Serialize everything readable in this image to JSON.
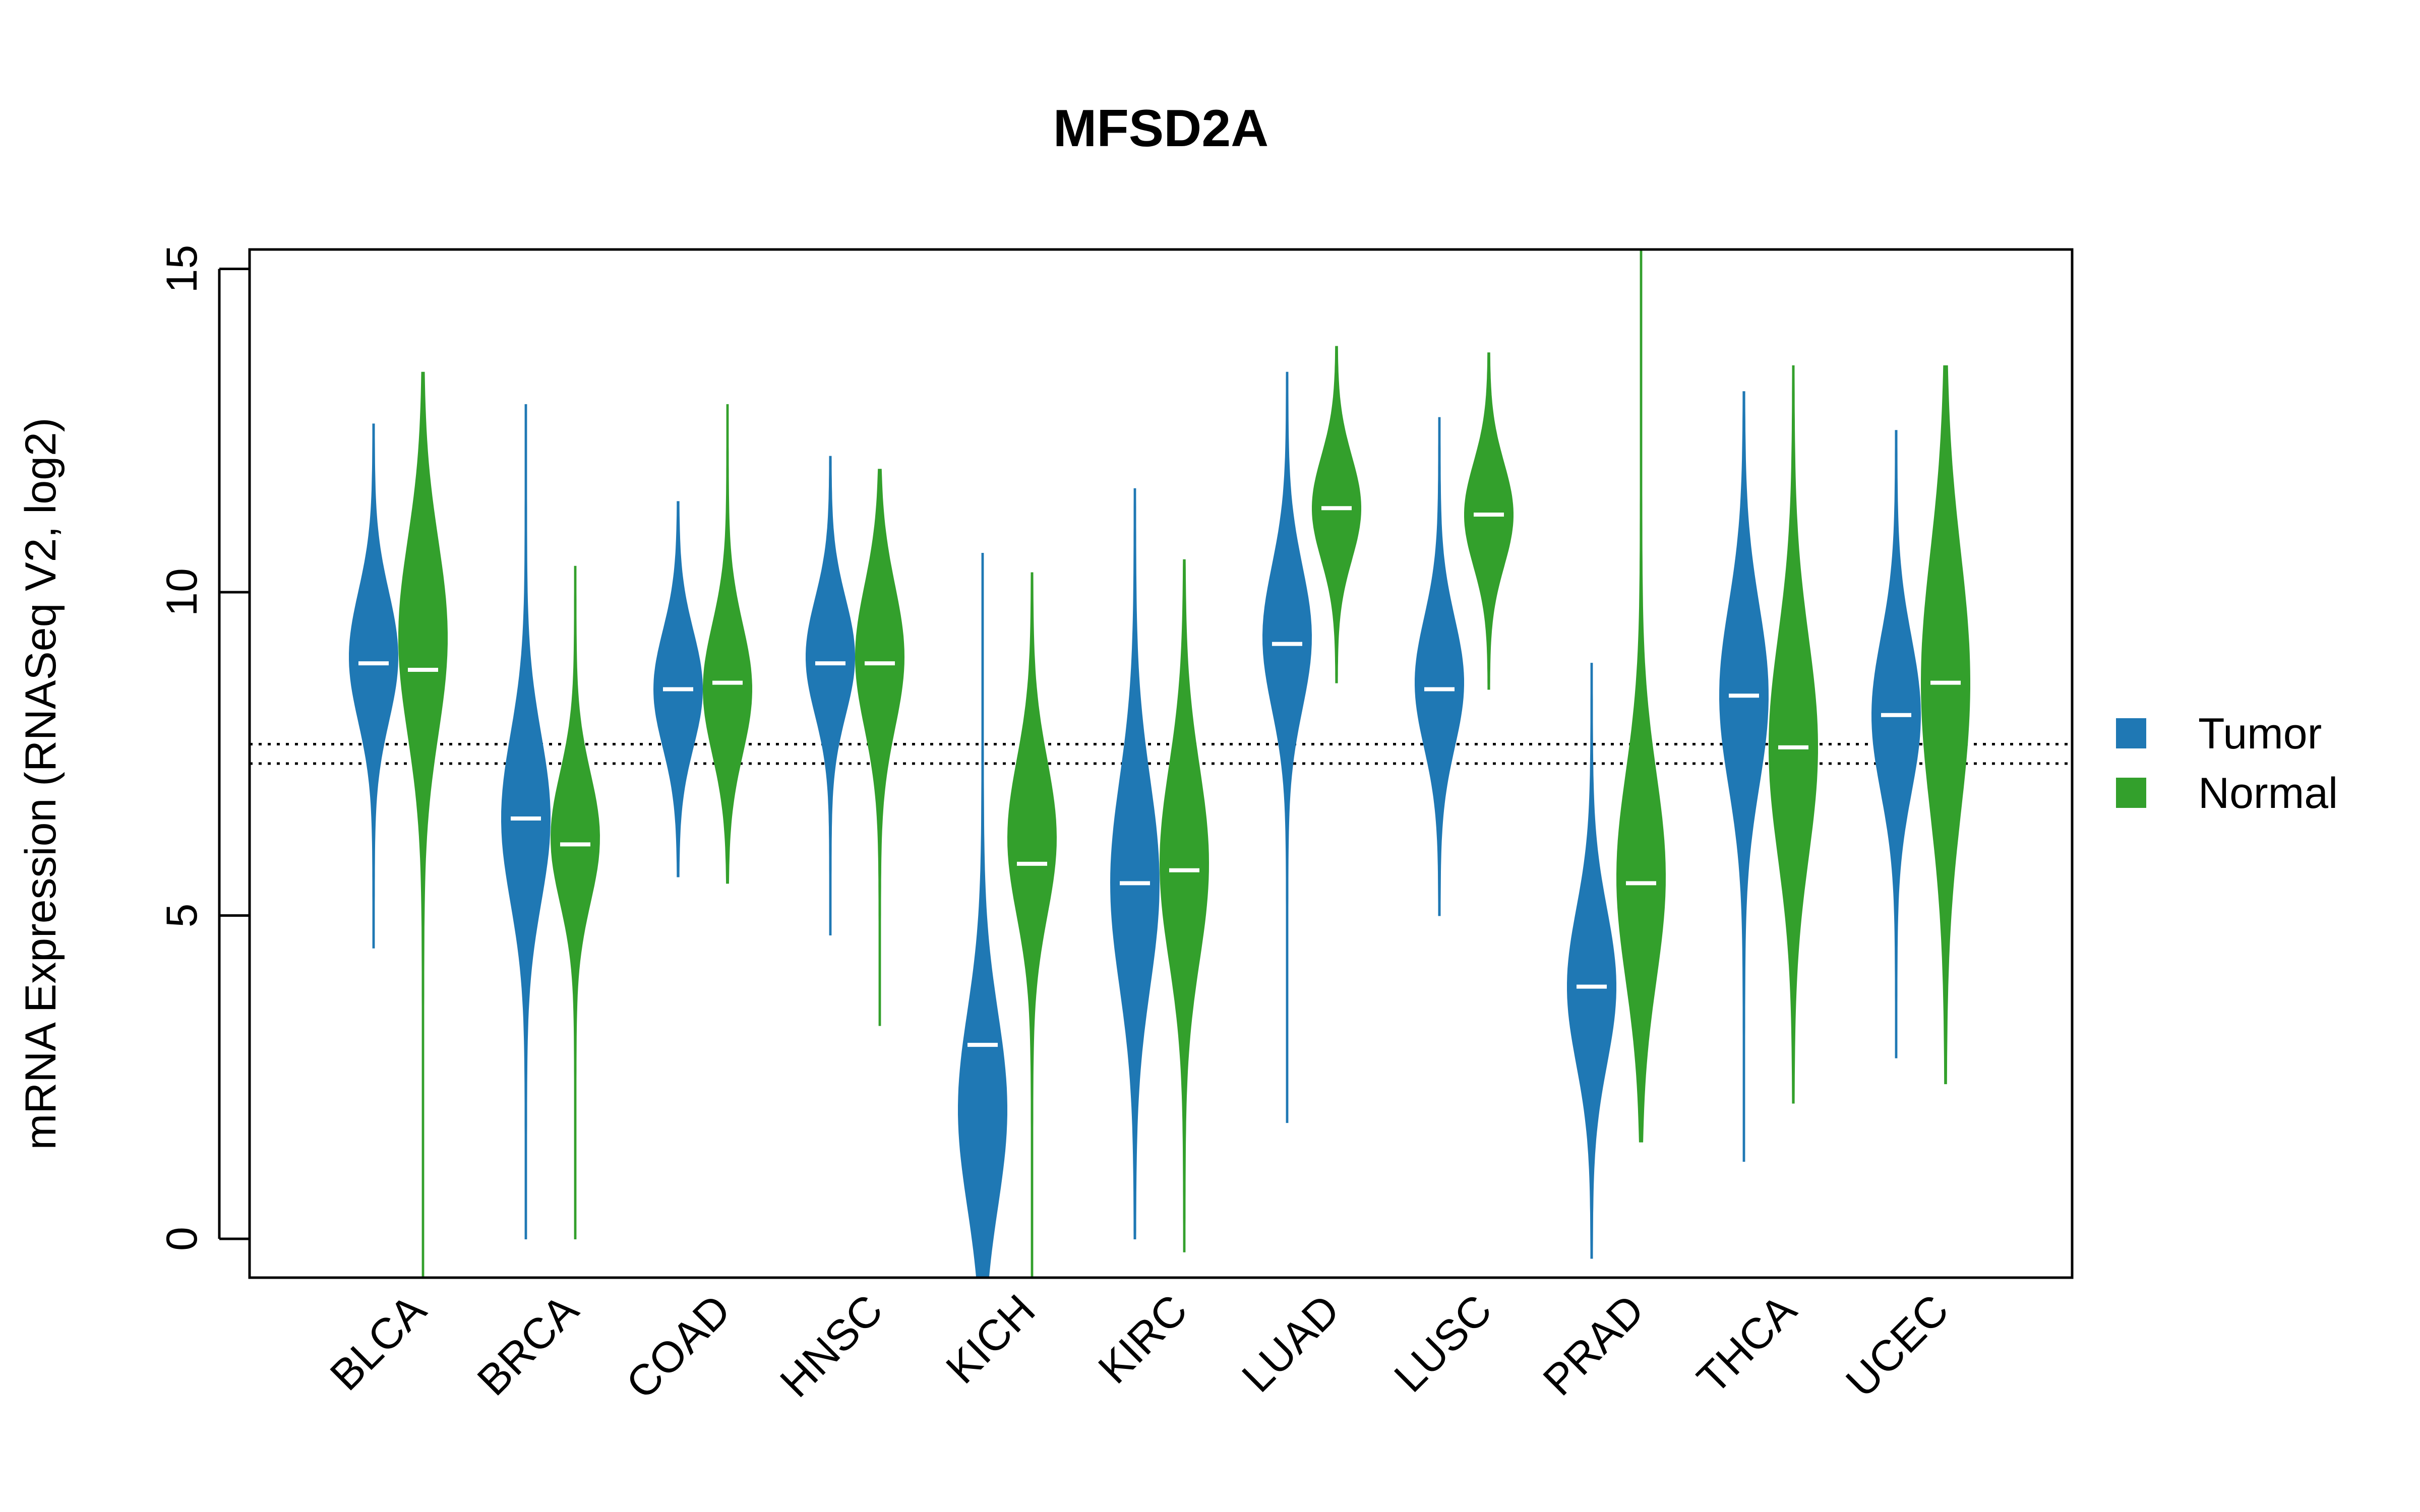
{
  "chart_data": {
    "type": "violin",
    "title": "MFSD2A",
    "ylabel": "mRNA Expression (RNASeq V2, log2)",
    "xlabel": "",
    "ylim": [
      -0.6,
      15.3
    ],
    "yticks": [
      0,
      5,
      10,
      15
    ],
    "ytick_labels": [
      "0",
      "5",
      "10",
      "15"
    ],
    "categories": [
      "BLCA",
      "BRCA",
      "COAD",
      "HNSC",
      "KICH",
      "KIRC",
      "LUAD",
      "LUSC",
      "PRAD",
      "THCA",
      "UCEC"
    ],
    "reference_lines": [
      7.35,
      7.65
    ],
    "grid": false,
    "legend": {
      "placement": "right",
      "entries": [
        "Tumor",
        "Normal"
      ]
    },
    "colors": {
      "Tumor": "#1f78b4",
      "Normal": "#33a02c"
    },
    "series": [
      {
        "name": "Tumor",
        "median": [
          8.9,
          6.5,
          8.5,
          8.9,
          3.0,
          5.5,
          9.2,
          8.5,
          3.9,
          8.4,
          8.1
        ],
        "min": [
          4.5,
          0.0,
          5.6,
          4.7,
          -0.6,
          0.0,
          1.8,
          5.0,
          -0.3,
          1.2,
          2.8
        ],
        "max": [
          12.6,
          12.9,
          11.4,
          12.1,
          10.6,
          11.6,
          13.4,
          12.7,
          8.9,
          13.1,
          12.5
        ],
        "mode": [
          9.0,
          6.5,
          8.5,
          9.0,
          2.0,
          5.5,
          9.3,
          8.6,
          3.9,
          8.4,
          8.1
        ],
        "spread": [
          1.0,
          1.3,
          0.9,
          0.9,
          1.5,
          1.6,
          1.1,
          1.0,
          1.2,
          1.4,
          1.2
        ]
      },
      {
        "name": "Normal",
        "median": [
          8.8,
          6.1,
          8.6,
          8.9,
          5.8,
          5.7,
          11.3,
          11.2,
          5.5,
          7.6,
          8.6
        ],
        "min": [
          -0.6,
          0.0,
          5.5,
          3.3,
          -0.6,
          -0.2,
          8.6,
          8.5,
          1.5,
          2.1,
          2.4
        ],
        "max": [
          13.4,
          10.4,
          12.9,
          11.9,
          10.3,
          10.5,
          13.8,
          13.7,
          15.3,
          13.5,
          13.5
        ],
        "mode": [
          9.3,
          6.2,
          8.5,
          9.0,
          6.2,
          5.8,
          11.3,
          11.2,
          5.6,
          7.6,
          8.6
        ],
        "spread": [
          1.5,
          1.0,
          1.0,
          1.1,
          1.2,
          1.5,
          0.8,
          0.8,
          1.6,
          1.7,
          2.0
        ]
      }
    ]
  }
}
